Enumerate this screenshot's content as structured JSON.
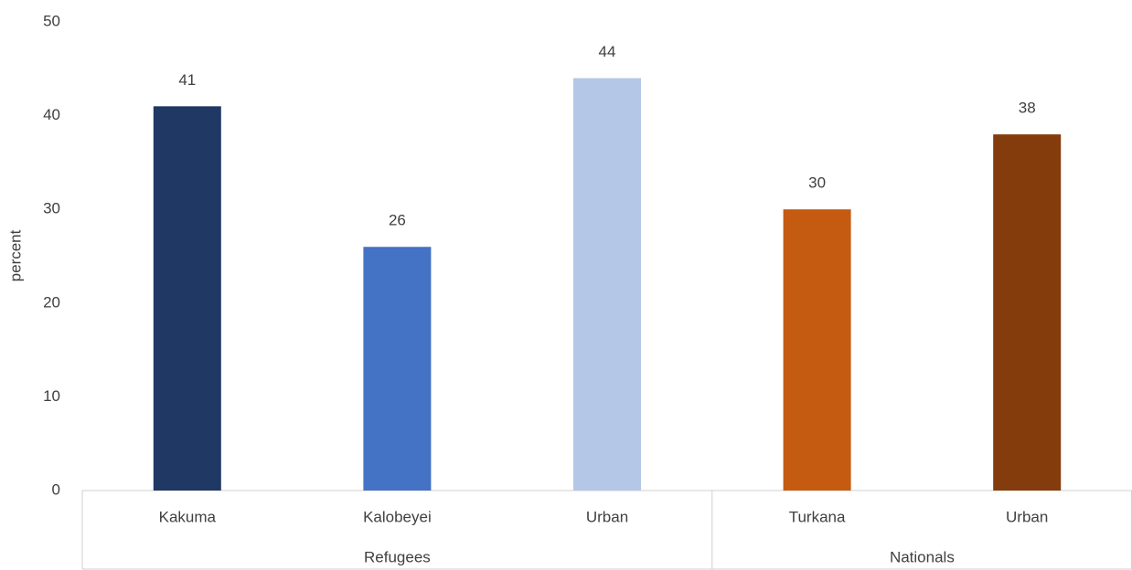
{
  "chart_data": {
    "type": "bar",
    "y_label": "percent",
    "ylim": [
      0,
      50
    ],
    "yticks": [
      0,
      10,
      20,
      30,
      40,
      50
    ],
    "groups": [
      {
        "name": "Refugees",
        "categories": [
          "Kakuma",
          "Kalobeyei",
          "Urban"
        ],
        "values": [
          41,
          26,
          44
        ],
        "colors": [
          "#1f3864",
          "#4472c4",
          "#b4c7e7"
        ]
      },
      {
        "name": "Nationals",
        "categories": [
          "Turkana",
          "Urban"
        ],
        "values": [
          30,
          38
        ],
        "colors": [
          "#c55a11",
          "#843c0c"
        ]
      }
    ]
  }
}
